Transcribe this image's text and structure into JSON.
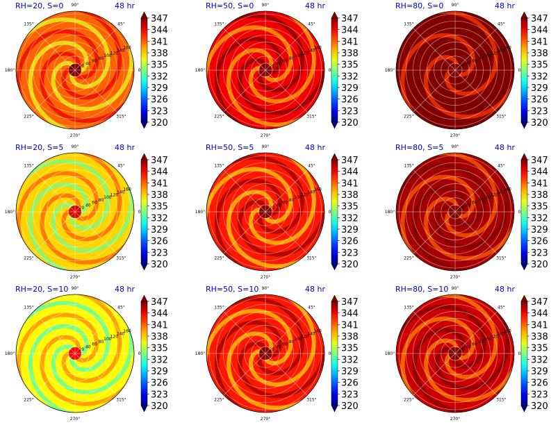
{
  "figure": {
    "panels": [
      {
        "title": "RH=20, S=0",
        "time": "48 hr"
      },
      {
        "title": "RH=50, S=0",
        "time": "48 hr"
      },
      {
        "title": "RH=80, S=0",
        "time": "48 hr"
      },
      {
        "title": "RH=20, S=5",
        "time": "48 hr"
      },
      {
        "title": "RH=50, S=5",
        "time": "48 hr"
      },
      {
        "title": "RH=80, S=5",
        "time": "48 hr"
      },
      {
        "title": "RH=20, S=10",
        "time": "48 hr"
      },
      {
        "title": "RH=50, S=10",
        "time": "48 hr"
      },
      {
        "title": "RH=80, S=10",
        "time": "48 hr"
      }
    ]
  },
  "chart_data": {
    "type": "heatmap",
    "subtype": "polar contour",
    "layout": "3x3 grid",
    "angular_ticks": [
      "0°",
      "45°",
      "90°",
      "135°",
      "180°",
      "225°",
      "270°",
      "315°"
    ],
    "radial_ticks": [
      "20",
      "40",
      "60",
      "80",
      "100",
      "120",
      "140",
      "160"
    ],
    "colorbar_ticks": [
      "347",
      "344",
      "341",
      "338",
      "335",
      "332",
      "329",
      "326",
      "323",
      "320"
    ],
    "colorbar_range": [
      320,
      347
    ],
    "colormap": "jet",
    "panels": [
      {
        "rh": 20,
        "s": 0,
        "dominant_value": 341
      },
      {
        "rh": 50,
        "s": 0,
        "dominant_value": 344
      },
      {
        "rh": 80,
        "s": 0,
        "dominant_value": 347
      },
      {
        "rh": 20,
        "s": 5,
        "dominant_value": 338
      },
      {
        "rh": 50,
        "s": 5,
        "dominant_value": 343
      },
      {
        "rh": 80,
        "s": 5,
        "dominant_value": 346
      },
      {
        "rh": 20,
        "s": 10,
        "dominant_value": 337
      },
      {
        "rh": 50,
        "s": 10,
        "dominant_value": 343
      },
      {
        "rh": 80,
        "s": 10,
        "dominant_value": 345
      }
    ]
  }
}
